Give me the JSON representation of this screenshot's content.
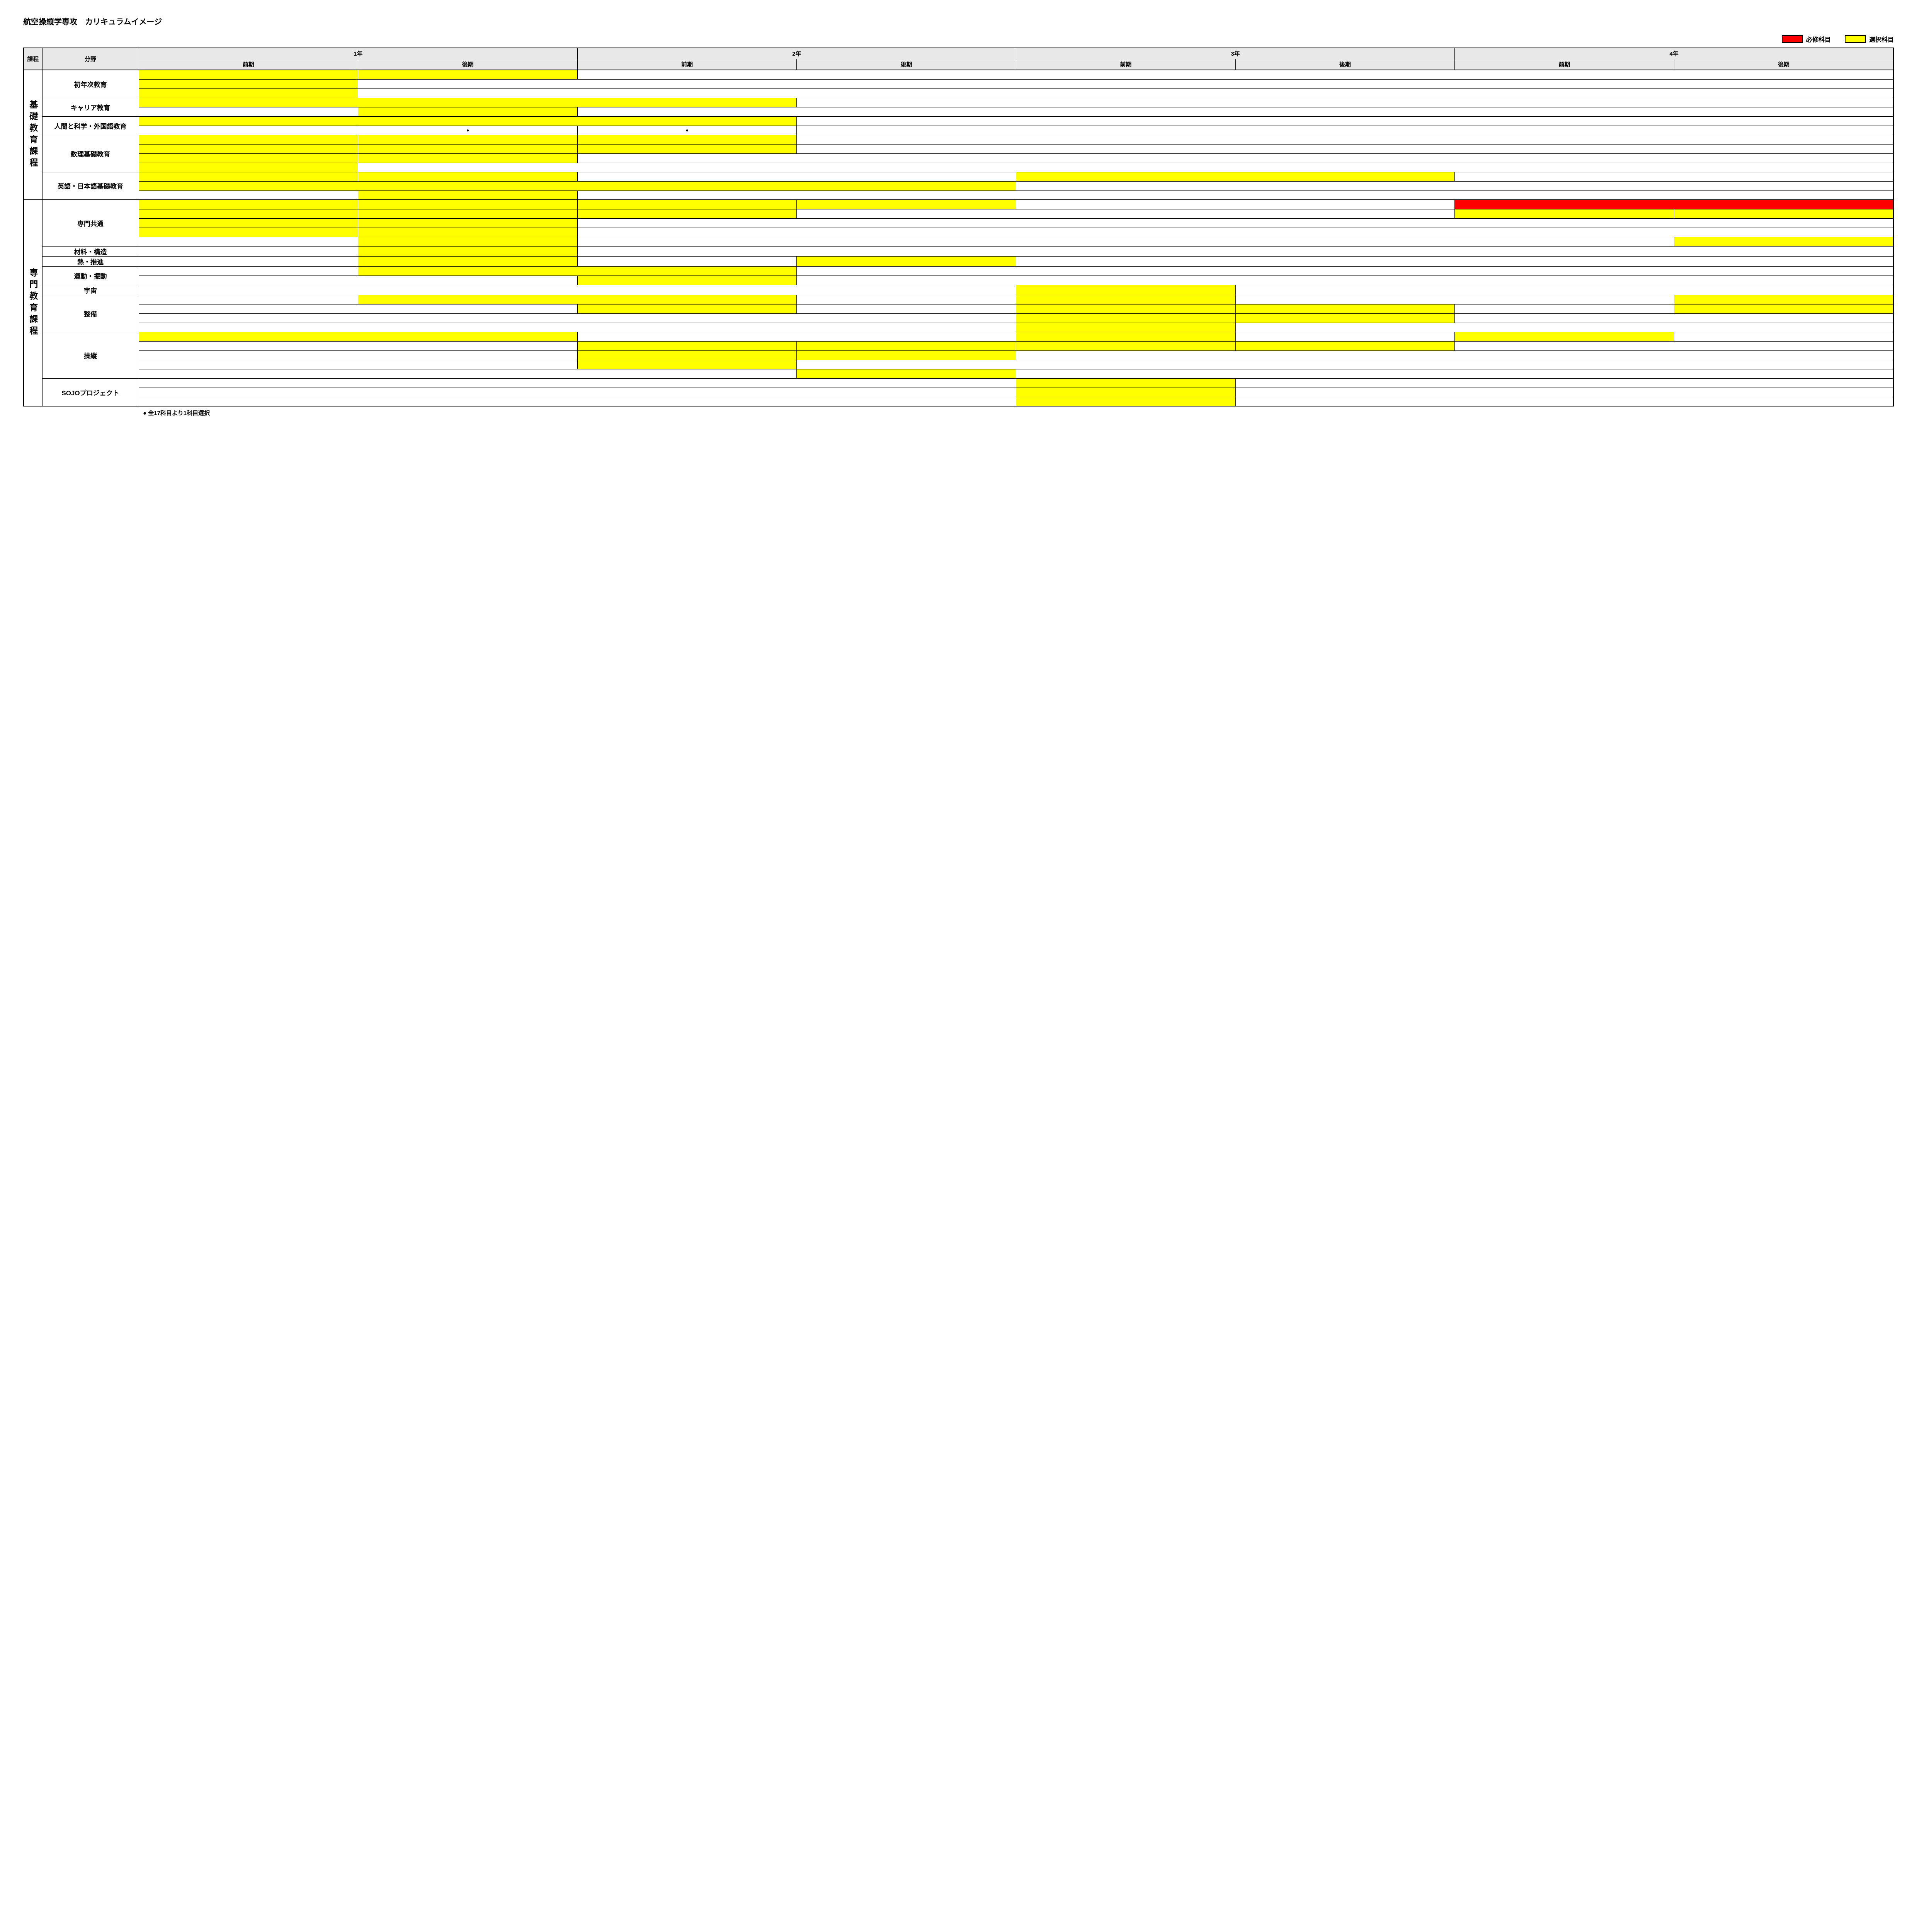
{
  "title": "航空操縦学専攻　カリキュラムイメージ",
  "colors": {
    "required": "#ff0000",
    "elective": "#ffff00",
    "header_bg": "#e8e8e8",
    "border": "#000000",
    "background": "#ffffff"
  },
  "legend": {
    "required_label": "必修科目",
    "elective_label": "選択科目"
  },
  "headers": {
    "program": "課程",
    "field": "分野",
    "years": [
      "1年",
      "2年",
      "3年",
      "4年"
    ],
    "semesters": [
      "前期",
      "後期"
    ]
  },
  "footnote": "● 全17科目より1科目選択",
  "semester_count": 8,
  "programs": [
    {
      "name": "基礎教育課程",
      "fields": [
        {
          "name": "初年次教育",
          "rows": [
            {
              "cells": [
                {
                  "span": 1,
                  "fill": "elective"
                },
                {
                  "span": 1,
                  "fill": "elective"
                },
                {
                  "span": 6,
                  "fill": "none",
                  "noRightInner": true
                }
              ]
            },
            {
              "cells": [
                {
                  "span": 1,
                  "fill": "elective"
                },
                {
                  "span": 7,
                  "fill": "none",
                  "noRightInner": true
                }
              ]
            },
            {
              "cells": [
                {
                  "span": 1,
                  "fill": "elective"
                },
                {
                  "span": 7,
                  "fill": "none",
                  "noRightInner": true
                }
              ]
            }
          ]
        },
        {
          "name": "キャリア教育",
          "rows": [
            {
              "cells": [
                {
                  "span": 3,
                  "fill": "elective"
                },
                {
                  "span": 5,
                  "fill": "none",
                  "noRightInner": true
                }
              ]
            },
            {
              "cells": [
                {
                  "span": 1,
                  "fill": "none"
                },
                {
                  "span": 1,
                  "fill": "elective"
                },
                {
                  "span": 6,
                  "fill": "none",
                  "noRightInner": true
                }
              ]
            }
          ]
        },
        {
          "name": "人間と科学・外国語教育",
          "rows": [
            {
              "cells": [
                {
                  "span": 3,
                  "fill": "elective"
                },
                {
                  "span": 5,
                  "fill": "none",
                  "noRightInner": true
                }
              ]
            },
            {
              "cells": [
                {
                  "span": 1,
                  "fill": "none"
                },
                {
                  "span": 1,
                  "fill": "none",
                  "dot": true
                },
                {
                  "span": 1,
                  "fill": "none",
                  "dot": true
                },
                {
                  "span": 5,
                  "fill": "none",
                  "noRightInner": true
                }
              ]
            }
          ]
        },
        {
          "name": "数理基礎教育",
          "rows": [
            {
              "cells": [
                {
                  "span": 1,
                  "fill": "elective"
                },
                {
                  "span": 1,
                  "fill": "elective"
                },
                {
                  "span": 1,
                  "fill": "elective"
                },
                {
                  "span": 5,
                  "fill": "none",
                  "noRightInner": true
                }
              ]
            },
            {
              "cells": [
                {
                  "span": 1,
                  "fill": "elective"
                },
                {
                  "span": 1,
                  "fill": "elective"
                },
                {
                  "span": 1,
                  "fill": "elective"
                },
                {
                  "span": 5,
                  "fill": "none",
                  "noRightInner": true
                }
              ]
            },
            {
              "cells": [
                {
                  "span": 1,
                  "fill": "elective"
                },
                {
                  "span": 1,
                  "fill": "elective"
                },
                {
                  "span": 6,
                  "fill": "none",
                  "noRightInner": true
                }
              ]
            },
            {
              "cells": [
                {
                  "span": 1,
                  "fill": "elective"
                },
                {
                  "span": 7,
                  "fill": "none",
                  "noRightInner": true
                }
              ]
            }
          ]
        },
        {
          "name": "英語・日本語基礎教育",
          "rows": [
            {
              "cells": [
                {
                  "span": 1,
                  "fill": "elective"
                },
                {
                  "span": 1,
                  "fill": "elective"
                },
                {
                  "span": 2,
                  "fill": "none"
                },
                {
                  "span": 2,
                  "fill": "elective"
                },
                {
                  "span": 2,
                  "fill": "none",
                  "noRightInner": true
                }
              ]
            },
            {
              "cells": [
                {
                  "span": 4,
                  "fill": "elective"
                },
                {
                  "span": 4,
                  "fill": "none",
                  "noRightInner": true
                }
              ]
            },
            {
              "cells": [
                {
                  "span": 1,
                  "fill": "none"
                },
                {
                  "span": 1,
                  "fill": "elective"
                },
                {
                  "span": 6,
                  "fill": "none",
                  "noRightInner": true
                }
              ]
            }
          ]
        }
      ]
    },
    {
      "name": "専門教育課程",
      "fields": [
        {
          "name": "専門共通",
          "rows": [
            {
              "cells": [
                {
                  "span": 1,
                  "fill": "elective"
                },
                {
                  "span": 1,
                  "fill": "elective"
                },
                {
                  "span": 1,
                  "fill": "elective"
                },
                {
                  "span": 1,
                  "fill": "elective"
                },
                {
                  "span": 2,
                  "fill": "none"
                },
                {
                  "span": 2,
                  "fill": "required"
                }
              ]
            },
            {
              "cells": [
                {
                  "span": 1,
                  "fill": "elective"
                },
                {
                  "span": 1,
                  "fill": "elective"
                },
                {
                  "span": 1,
                  "fill": "elective"
                },
                {
                  "span": 3,
                  "fill": "none"
                },
                {
                  "span": 1,
                  "fill": "elective"
                },
                {
                  "span": 1,
                  "fill": "elective"
                }
              ]
            },
            {
              "cells": [
                {
                  "span": 1,
                  "fill": "elective"
                },
                {
                  "span": 1,
                  "fill": "elective"
                },
                {
                  "span": 6,
                  "fill": "none",
                  "noRightInner": true
                }
              ]
            },
            {
              "cells": [
                {
                  "span": 1,
                  "fill": "elective"
                },
                {
                  "span": 1,
                  "fill": "elective"
                },
                {
                  "span": 6,
                  "fill": "none",
                  "noRightInner": true
                }
              ]
            },
            {
              "cells": [
                {
                  "span": 1,
                  "fill": "none"
                },
                {
                  "span": 1,
                  "fill": "elective"
                },
                {
                  "span": 5,
                  "fill": "none"
                },
                {
                  "span": 1,
                  "fill": "elective"
                }
              ]
            }
          ]
        },
        {
          "name": "材料・構造",
          "rows": [
            {
              "cells": [
                {
                  "span": 1,
                  "fill": "none"
                },
                {
                  "span": 1,
                  "fill": "elective"
                },
                {
                  "span": 6,
                  "fill": "none",
                  "noRightInner": true
                }
              ]
            }
          ]
        },
        {
          "name": "熱・推進",
          "rows": [
            {
              "cells": [
                {
                  "span": 1,
                  "fill": "none"
                },
                {
                  "span": 1,
                  "fill": "elective"
                },
                {
                  "span": 1,
                  "fill": "none"
                },
                {
                  "span": 1,
                  "fill": "elective"
                },
                {
                  "span": 4,
                  "fill": "none",
                  "noRightInner": true
                }
              ]
            }
          ]
        },
        {
          "name": "運動・振動",
          "rows": [
            {
              "cells": [
                {
                  "span": 1,
                  "fill": "none"
                },
                {
                  "span": 2,
                  "fill": "elective"
                },
                {
                  "span": 5,
                  "fill": "none",
                  "noRightInner": true
                }
              ]
            },
            {
              "cells": [
                {
                  "span": 2,
                  "fill": "none"
                },
                {
                  "span": 1,
                  "fill": "elective"
                },
                {
                  "span": 5,
                  "fill": "none",
                  "noRightInner": true
                }
              ]
            }
          ]
        },
        {
          "name": "宇宙",
          "rows": [
            {
              "cells": [
                {
                  "span": 4,
                  "fill": "none"
                },
                {
                  "span": 1,
                  "fill": "elective"
                },
                {
                  "span": 3,
                  "fill": "none",
                  "noRightInner": true
                }
              ]
            }
          ]
        },
        {
          "name": "整備",
          "rows": [
            {
              "cells": [
                {
                  "span": 1,
                  "fill": "none"
                },
                {
                  "span": 2,
                  "fill": "elective"
                },
                {
                  "span": 1,
                  "fill": "none"
                },
                {
                  "span": 1,
                  "fill": "elective"
                },
                {
                  "span": 2,
                  "fill": "none"
                },
                {
                  "span": 1,
                  "fill": "elective"
                }
              ]
            },
            {
              "cells": [
                {
                  "span": 2,
                  "fill": "none"
                },
                {
                  "span": 1,
                  "fill": "elective"
                },
                {
                  "span": 1,
                  "fill": "none"
                },
                {
                  "span": 1,
                  "fill": "elective"
                },
                {
                  "span": 1,
                  "fill": "elective"
                },
                {
                  "span": 1,
                  "fill": "none"
                },
                {
                  "span": 1,
                  "fill": "elective"
                }
              ]
            },
            {
              "cells": [
                {
                  "span": 4,
                  "fill": "none"
                },
                {
                  "span": 1,
                  "fill": "elective"
                },
                {
                  "span": 1,
                  "fill": "elective"
                },
                {
                  "span": 2,
                  "fill": "none",
                  "noRightInner": true
                }
              ]
            },
            {
              "cells": [
                {
                  "span": 4,
                  "fill": "none"
                },
                {
                  "span": 1,
                  "fill": "elective"
                },
                {
                  "span": 3,
                  "fill": "none",
                  "noRightInner": true
                }
              ]
            }
          ]
        },
        {
          "name": "操縦",
          "rows": [
            {
              "cells": [
                {
                  "span": 2,
                  "fill": "elective"
                },
                {
                  "span": 2,
                  "fill": "none"
                },
                {
                  "span": 1,
                  "fill": "elective"
                },
                {
                  "span": 1,
                  "fill": "none"
                },
                {
                  "span": 1,
                  "fill": "elective"
                },
                {
                  "span": 1,
                  "fill": "none"
                }
              ]
            },
            {
              "cells": [
                {
                  "span": 2,
                  "fill": "none"
                },
                {
                  "span": 1,
                  "fill": "elective"
                },
                {
                  "span": 1,
                  "fill": "elective"
                },
                {
                  "span": 1,
                  "fill": "elective"
                },
                {
                  "span": 1,
                  "fill": "elective"
                },
                {
                  "span": 2,
                  "fill": "none",
                  "noRightInner": true
                }
              ]
            },
            {
              "cells": [
                {
                  "span": 2,
                  "fill": "none"
                },
                {
                  "span": 1,
                  "fill": "elective"
                },
                {
                  "span": 1,
                  "fill": "elective"
                },
                {
                  "span": 4,
                  "fill": "none",
                  "noRightInner": true
                }
              ]
            },
            {
              "cells": [
                {
                  "span": 2,
                  "fill": "none"
                },
                {
                  "span": 1,
                  "fill": "elective"
                },
                {
                  "span": 5,
                  "fill": "none",
                  "noRightInner": true
                }
              ]
            },
            {
              "cells": [
                {
                  "span": 3,
                  "fill": "none"
                },
                {
                  "span": 1,
                  "fill": "elective"
                },
                {
                  "span": 4,
                  "fill": "none",
                  "noRightInner": true
                }
              ]
            }
          ]
        },
        {
          "name": "SOJOプロジェクト",
          "rows": [
            {
              "cells": [
                {
                  "span": 4,
                  "fill": "none"
                },
                {
                  "span": 1,
                  "fill": "elective"
                },
                {
                  "span": 3,
                  "fill": "none",
                  "noRightInner": true
                }
              ]
            },
            {
              "cells": [
                {
                  "span": 4,
                  "fill": "none"
                },
                {
                  "span": 1,
                  "fill": "elective"
                },
                {
                  "span": 3,
                  "fill": "none",
                  "noRightInner": true
                }
              ]
            },
            {
              "cells": [
                {
                  "span": 4,
                  "fill": "none"
                },
                {
                  "span": 1,
                  "fill": "elective"
                },
                {
                  "span": 3,
                  "fill": "none",
                  "noRightInner": true
                }
              ]
            }
          ]
        }
      ]
    }
  ]
}
